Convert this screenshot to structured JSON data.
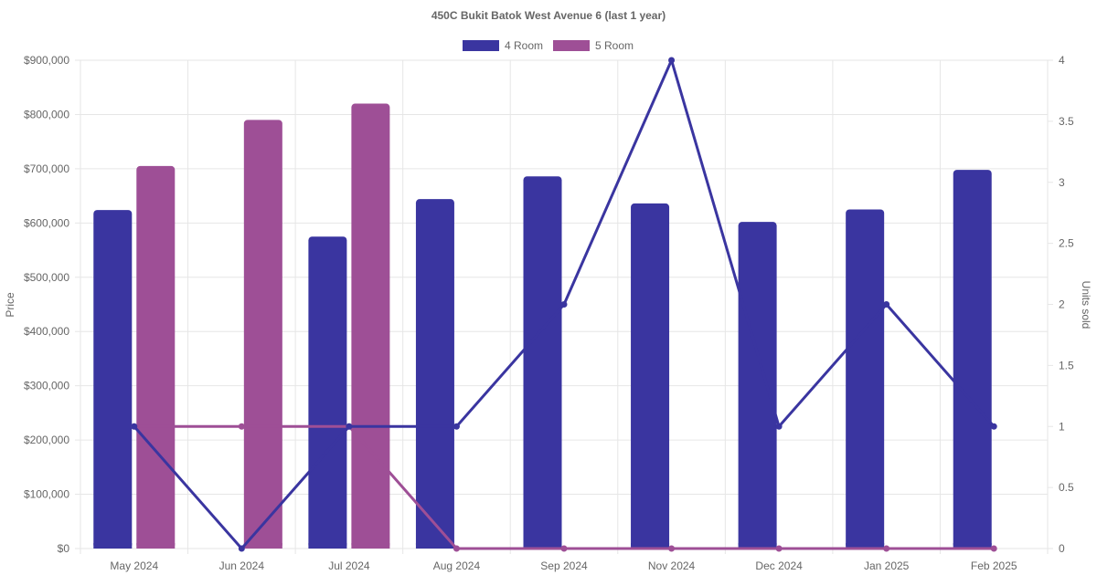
{
  "chart_data": {
    "type": "bar",
    "title": "450C Bukit Batok West Avenue 6 (last 1 year)",
    "categories": [
      "May 2024",
      "Jun 2024",
      "Jul 2024",
      "Aug 2024",
      "Sep 2024",
      "Nov 2024",
      "Dec 2024",
      "Jan 2025",
      "Feb 2025"
    ],
    "ylabel": "Price",
    "y2label": "Units sold",
    "ylim": [
      0,
      900000
    ],
    "y2lim": [
      0,
      4
    ],
    "y_ticks": [
      "$0",
      "$100,000",
      "$200,000",
      "$300,000",
      "$400,000",
      "$500,000",
      "$600,000",
      "$700,000",
      "$800,000",
      "$900,000"
    ],
    "y2_ticks": [
      "0",
      "0.5",
      "1",
      "1.5",
      "2",
      "2.5",
      "3",
      "3.5",
      "4"
    ],
    "grid": true,
    "legend_position": "top",
    "series": [
      {
        "name": "4 Room",
        "color": "#3a35a0",
        "price": [
          624000,
          null,
          575000,
          644000,
          686000,
          636000,
          602000,
          625000,
          698000
        ],
        "units_sold": [
          1,
          0,
          1,
          1,
          2,
          4,
          1,
          2,
          1
        ]
      },
      {
        "name": "5 Room",
        "color": "#9e4f96",
        "price": [
          705000,
          790000,
          820000,
          null,
          null,
          null,
          null,
          null,
          null
        ],
        "units_sold": [
          1,
          1,
          1,
          0,
          0,
          0,
          0,
          0,
          0
        ]
      }
    ]
  }
}
